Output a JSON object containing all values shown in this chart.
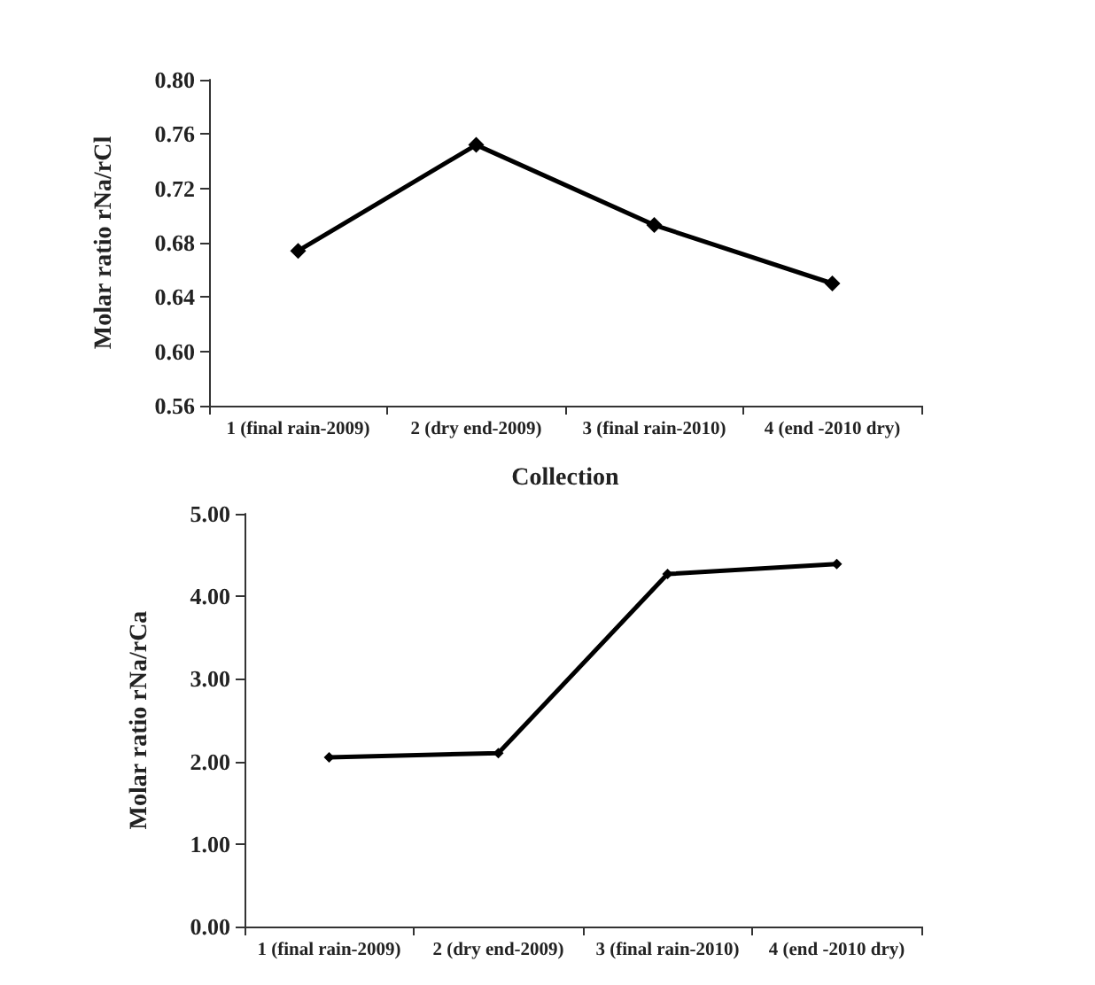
{
  "chart_data": [
    {
      "type": "line",
      "xlabel": "Collection",
      "ylabel": "Molar ratio rNa/rCl",
      "categories": [
        "1 (final rain-2009)",
        "2 (dry end-2009)",
        "3 (final rain-2010)",
        "4 (end -2010 dry)"
      ],
      "series": [
        {
          "color": "#000000",
          "values": [
            0.674,
            0.752,
            0.693,
            0.65
          ]
        }
      ],
      "ylim": [
        0.56,
        0.8
      ],
      "yticks": [
        {
          "value": 0.56,
          "label": "0.56"
        },
        {
          "value": 0.6,
          "label": "0.60"
        },
        {
          "value": 0.64,
          "label": "0.64"
        },
        {
          "value": 0.68,
          "label": "0.68"
        },
        {
          "value": 0.72,
          "label": "0.72"
        },
        {
          "value": 0.76,
          "label": "0.76"
        },
        {
          "value": 0.8,
          "label": "0.80"
        }
      ],
      "grid": false,
      "marker": "diamond",
      "line_style": "solid"
    },
    {
      "type": "line",
      "ylabel": "Molar ratio rNa/rCa",
      "categories": [
        "1 (final rain-2009)",
        "2 (dry end-2009)",
        "3 (final rain-2010)",
        "4 (end -2010 dry)"
      ],
      "series": [
        {
          "color": "#000000",
          "values": [
            2.05,
            2.1,
            4.27,
            4.39
          ]
        }
      ],
      "ylim": [
        0,
        5
      ],
      "yticks": [
        {
          "value": 0,
          "label": "0.00"
        },
        {
          "value": 1,
          "label": "1.00"
        },
        {
          "value": 2,
          "label": "2.00"
        },
        {
          "value": 3,
          "label": "3.00"
        },
        {
          "value": 4,
          "label": "4.00"
        },
        {
          "value": 5,
          "label": "5.00"
        }
      ],
      "grid": false,
      "marker": "diamond",
      "line_style": "solid"
    }
  ]
}
